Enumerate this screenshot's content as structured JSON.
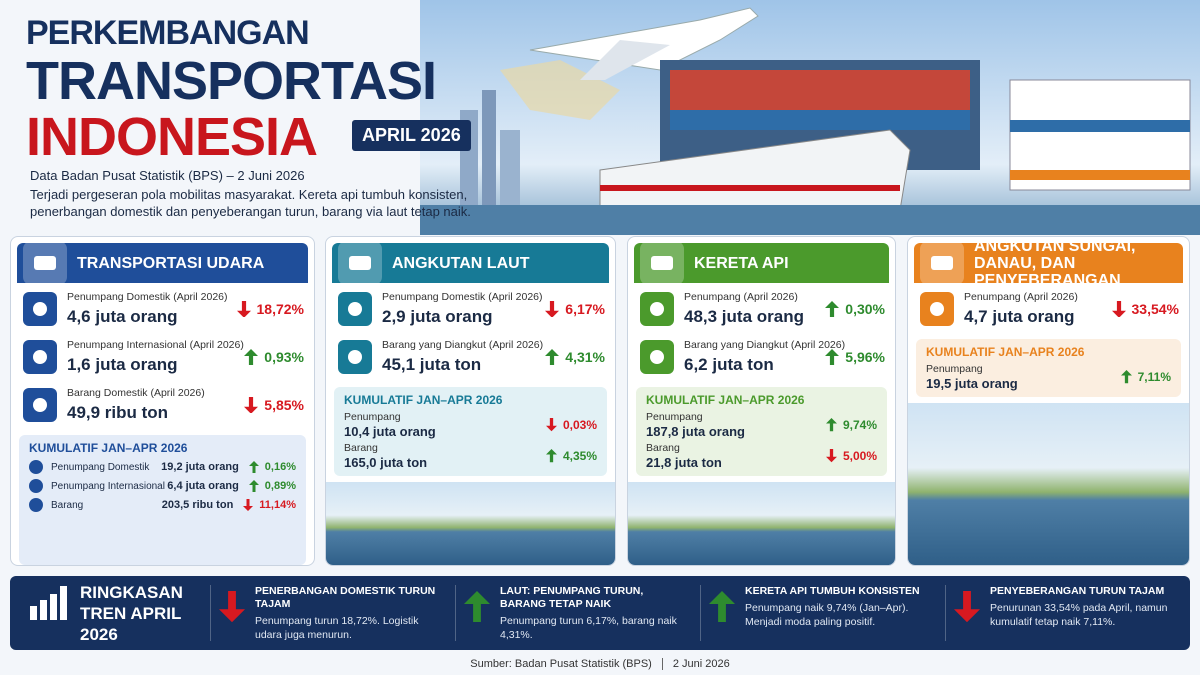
{
  "header": {
    "title_line1": "PERKEMBANGAN",
    "title_line2": "TRANSPORTASI",
    "title_line3": "INDONESIA",
    "badge": "APRIL 2026",
    "source": "Data Badan Pusat Statistik (BPS) – 2 Juni 2026",
    "description": "Terjadi pergeseran pola mobilitas masyarakat. Kereta api tumbuh konsisten, penerbangan domestik dan penyeberangan turun, barang via laut tetap naik."
  },
  "panels": [
    {
      "title": "TRANSPORTASI UDARA",
      "color": "#1f4e9a",
      "light": "#e4ecf8",
      "items": [
        {
          "label": "Penumpang Domestik (April 2026)",
          "value": "4,6 juta orang",
          "change": "18,72%",
          "direction": "down"
        },
        {
          "label": "Penumpang Internasional (April 2026)",
          "value": "1,6 juta orang",
          "change": "0,93%",
          "direction": "up"
        },
        {
          "label": "Barang Domestik (April 2026)",
          "value": "49,9 ribu ton",
          "change": "5,85%",
          "direction": "down"
        }
      ],
      "cumulative": {
        "title": "KUMULATIF JAN–APR 2026",
        "items": [
          {
            "label": "Penumpang Domestik",
            "value": "19,2 juta orang",
            "change": "0,16%",
            "direction": "up"
          },
          {
            "label": "Penumpang Internasional",
            "value": "6,4 juta orang",
            "change": "0,89%",
            "direction": "up"
          },
          {
            "label": "Barang",
            "value": "203,5 ribu ton",
            "change": "11,14%",
            "direction": "down"
          }
        ]
      }
    },
    {
      "title": "ANGKUTAN LAUT",
      "color": "#177a96",
      "light": "#e2f1f5",
      "items": [
        {
          "label": "Penumpang Domestik (April 2026)",
          "value": "2,9 juta orang",
          "change": "6,17%",
          "direction": "down"
        },
        {
          "label": "Barang yang Diangkut (April 2026)",
          "value": "45,1 juta ton",
          "change": "4,31%",
          "direction": "up"
        }
      ],
      "cumulative": {
        "title": "KUMULATIF JAN–APR 2026",
        "items": [
          {
            "label": "Penumpang",
            "value": "10,4 juta orang",
            "change": "0,03%",
            "direction": "down"
          },
          {
            "label": "Barang",
            "value": "165,0 juta ton",
            "change": "4,35%",
            "direction": "up"
          }
        ]
      }
    },
    {
      "title": "KERETA API",
      "color": "#4b9a2c",
      "light": "#eaf3e3",
      "items": [
        {
          "label": "Penumpang (April 2026)",
          "value": "48,3 juta orang",
          "change": "0,30%",
          "direction": "up"
        },
        {
          "label": "Barang yang Diangkut (April 2026)",
          "value": "6,2 juta ton",
          "change": "5,96%",
          "direction": "up"
        }
      ],
      "cumulative": {
        "title": "KUMULATIF JAN–APR 2026",
        "items": [
          {
            "label": "Penumpang",
            "value": "187,8 juta orang",
            "change": "9,74%",
            "direction": "up"
          },
          {
            "label": "Barang",
            "value": "21,8 juta ton",
            "change": "5,00%",
            "direction": "down"
          }
        ]
      }
    },
    {
      "title": "ANGKUTAN SUNGAI, DANAU, DAN PENYEBERANGAN",
      "color": "#e8821e",
      "light": "#fbeee0",
      "items": [
        {
          "label": "Penumpang (April 2026)",
          "value": "4,7 juta orang",
          "change": "33,54%",
          "direction": "down"
        }
      ],
      "cumulative": {
        "title": "KUMULATIF JAN–APR 2026",
        "items": [
          {
            "label": "Penumpang",
            "value": "19,5 juta orang",
            "change": "7,11%",
            "direction": "up"
          }
        ]
      }
    }
  ],
  "summary": {
    "title": "RINGKASAN TREN APRIL 2026",
    "items": [
      {
        "heading": "PENERBANGAN DOMESTIK TURUN TAJAM",
        "text": "Penumpang turun 18,72%. Logistik udara juga menurun.",
        "direction": "down"
      },
      {
        "heading": "LAUT: PENUMPANG TURUN, BARANG TETAP NAIK",
        "text": "Penumpang turun 6,17%, barang naik 4,31%.",
        "direction": "up"
      },
      {
        "heading": "KERETA API TUMBUH KONSISTEN",
        "text": "Penumpang naik 9,74% (Jan–Apr). Menjadi moda paling positif.",
        "direction": "up"
      },
      {
        "heading": "PENYEBERANGAN TURUN TAJAM",
        "text": "Penurunan 33,54% pada April, namun kumulatif tetap naik 7,11%.",
        "direction": "down"
      }
    ]
  },
  "footer": {
    "source": "Sumber: Badan Pusat Statistik (BPS)",
    "date": "2 Juni 2026"
  }
}
